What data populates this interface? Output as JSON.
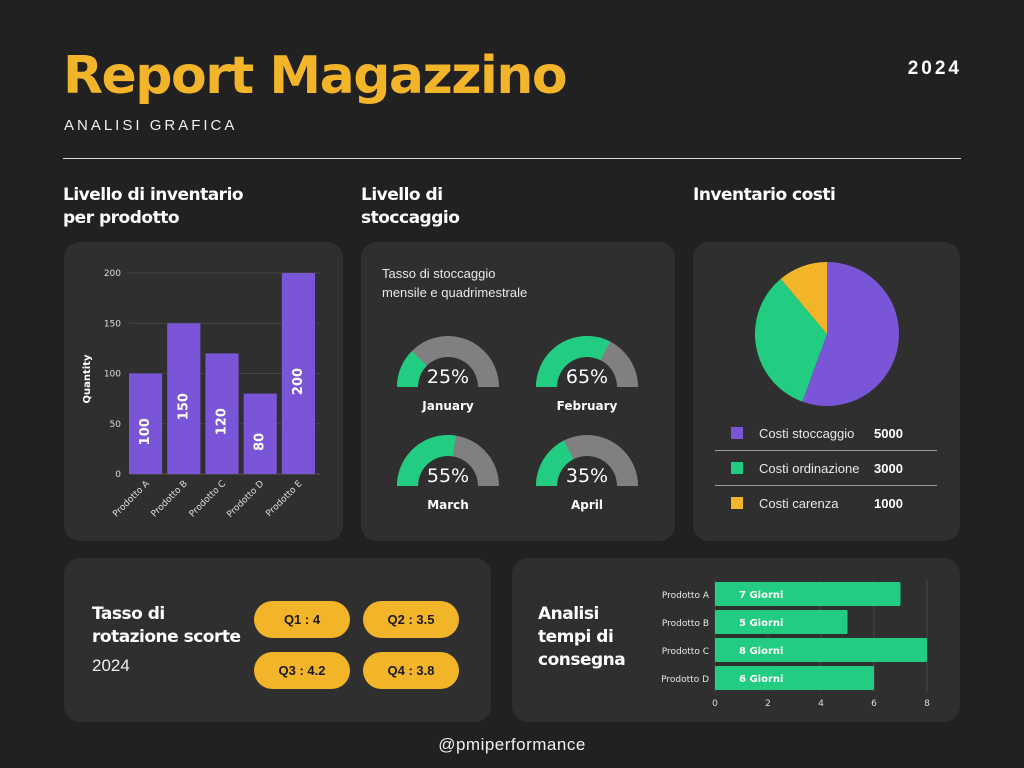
{
  "header": {
    "title": "Report Magazzino",
    "subtitle": "ANALISI GRAFICA",
    "year": "2024"
  },
  "sections": {
    "inventory": {
      "title_line1": "Livello di inventario",
      "title_line2": "per prodotto"
    },
    "storage": {
      "title_line1": "Livello di",
      "title_line2": "stoccaggio",
      "subtitle_line1": "Tasso di stoccaggio",
      "subtitle_line2": "mensile e quadrimestrale"
    },
    "costs": {
      "title": "Inventario costi"
    },
    "rotation": {
      "title_line1": "Tasso di",
      "title_line2": "rotazione scorte",
      "year": "2024",
      "quarters": [
        {
          "label": "Q1 : 4"
        },
        {
          "label": "Q2 : 3.5"
        },
        {
          "label": "Q3 : 4.2"
        },
        {
          "label": "Q4 : 3.8"
        }
      ]
    },
    "delivery": {
      "title_line1": "Analisi",
      "title_line2": "tempi di",
      "title_line3": "consegna"
    }
  },
  "colors": {
    "background": "#212121",
    "card": "#2f2f2f",
    "accent_yellow": "#f2b52a",
    "purple": "#7b55d8",
    "green": "#22cc80",
    "gray": "#808080"
  },
  "chart_data": [
    {
      "type": "bar",
      "title": "Livello di inventario per prodotto",
      "categories": [
        "Prodotto A",
        "Prodotto B",
        "Prodotto C",
        "Prodotto D",
        "Prodotto E"
      ],
      "values": [
        100,
        150,
        120,
        80,
        200
      ],
      "value_labels": [
        "100",
        "150",
        "120",
        "80",
        "200"
      ],
      "xlabel": "",
      "ylabel": "Quantity",
      "ylim": [
        0,
        200
      ],
      "yticks": [
        "0",
        "50",
        "100",
        "150",
        "200"
      ],
      "grid": true,
      "color": "#7b55d8"
    },
    {
      "type": "gauge",
      "title": "Tasso di stoccaggio mensile e quadrimestrale",
      "items": [
        {
          "label": "January",
          "value": 25,
          "display": "25%"
        },
        {
          "label": "February",
          "value": 65,
          "display": "65%"
        },
        {
          "label": "March",
          "value": 55,
          "display": "55%"
        },
        {
          "label": "April",
          "value": 35,
          "display": "35%"
        }
      ],
      "colors": {
        "fill": "#22cc80",
        "track": "#808080"
      }
    },
    {
      "type": "pie",
      "title": "Inventario costi",
      "categories": [
        "Costi stoccaggio",
        "Costi ordinazione",
        "Costi carenza"
      ],
      "values": [
        5000,
        3000,
        1000
      ],
      "value_labels": [
        "5000",
        "3000",
        "1000"
      ],
      "colors": [
        "#7b55d8",
        "#22cc80",
        "#f2b52a"
      ],
      "legend_position": "bottom"
    },
    {
      "type": "bar",
      "orientation": "horizontal",
      "title": "Analisi tempi di consegna",
      "categories": [
        "Prodotto A",
        "Prodotto B",
        "Prodotto C",
        "Prodotto D"
      ],
      "values": [
        7,
        5,
        8,
        6
      ],
      "value_labels": [
        "7 Giorni",
        "5 Giorni",
        "8 Giorni",
        "6 Giorni"
      ],
      "xlim": [
        0,
        8
      ],
      "xticks": [
        "0",
        "2",
        "4",
        "6",
        "8"
      ],
      "grid": true,
      "color": "#22cc80"
    },
    {
      "type": "table",
      "title": "Tasso di rotazione scorte 2024",
      "categories": [
        "Q1",
        "Q2",
        "Q3",
        "Q4"
      ],
      "values": [
        4,
        3.5,
        4.2,
        3.8
      ]
    }
  ],
  "footer": {
    "handle": "@pmiperformance"
  }
}
